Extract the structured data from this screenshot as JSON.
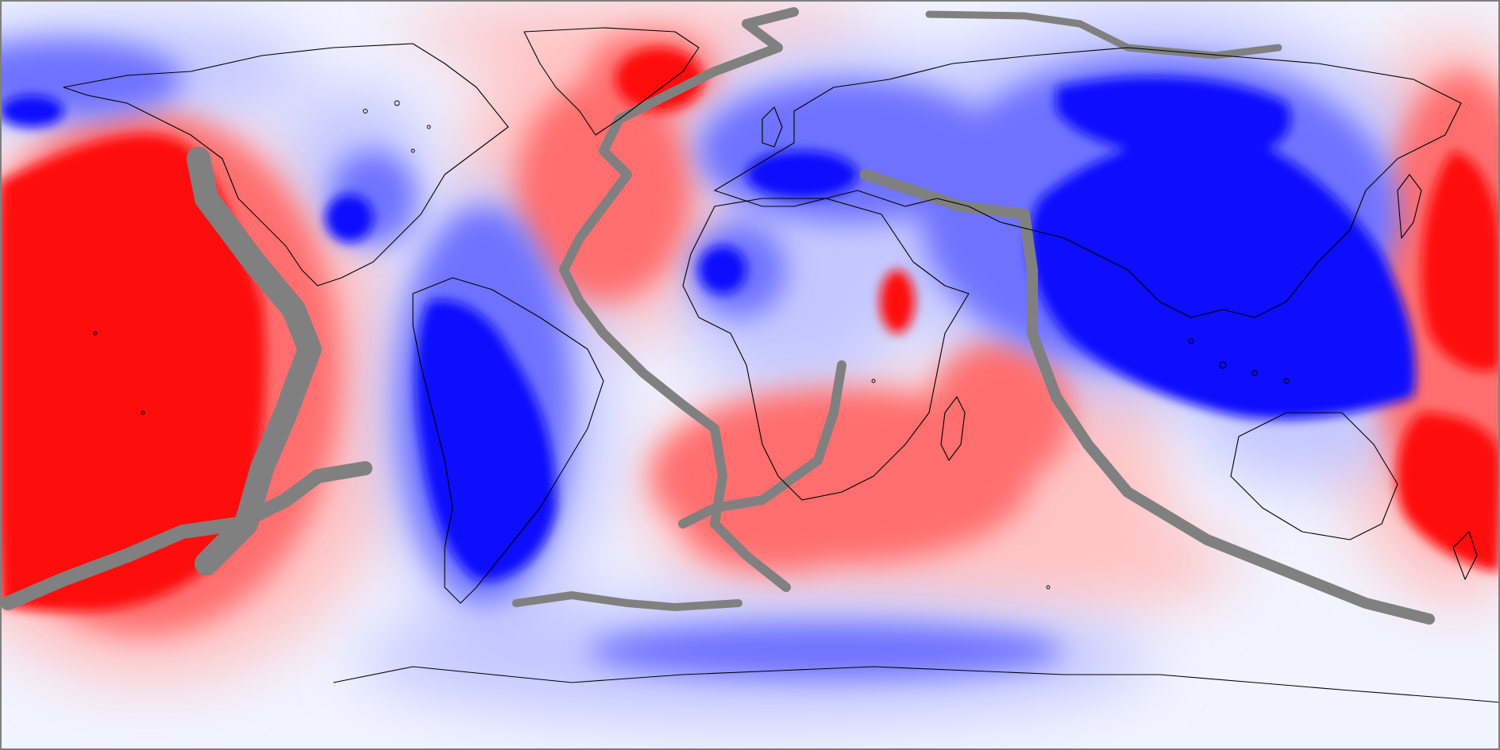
{
  "map": {
    "projection": "equirectangular",
    "extent": "global",
    "colors": {
      "positive": "#ff0000",
      "negative": "#0000ff",
      "neutral": "#f2f4ff",
      "mask": "#808080",
      "coastline": "#000000",
      "frame": "#7f7f7f"
    }
  }
}
